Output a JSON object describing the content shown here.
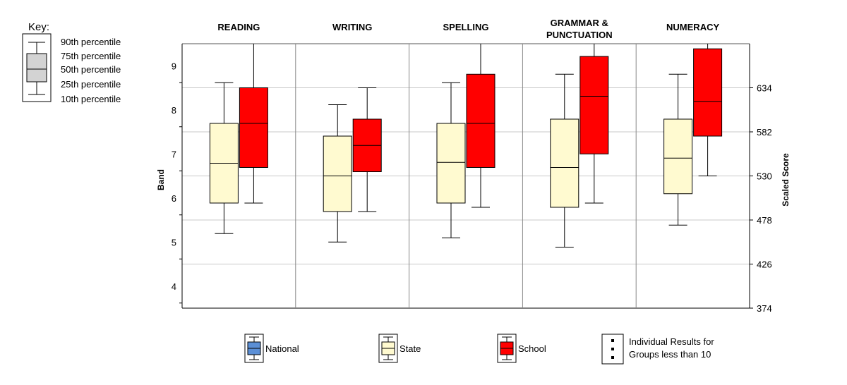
{
  "key": {
    "title": "Key:",
    "items": [
      "90th percentile",
      "75th percentile",
      "50th percentile",
      "25th percentile",
      "10th percentile"
    ]
  },
  "legend": {
    "items": [
      {
        "label": "National",
        "color": "#5b8fd6"
      },
      {
        "label": "State",
        "color": "#fffad0"
      },
      {
        "label": "School",
        "color": "#ff0000"
      },
      {
        "label_lines": [
          "Individual Results for",
          "Groups less than 10"
        ]
      }
    ]
  },
  "chart_data": {
    "type": "box",
    "ylabel": "Band",
    "ylabel_right": "Scaled Score",
    "band_ticks": [
      {
        "label": "4",
        "value": 400
      },
      {
        "label": "5",
        "value": 452
      },
      {
        "label": "6",
        "value": 504
      },
      {
        "label": "7",
        "value": 556
      },
      {
        "label": "8",
        "value": 608
      },
      {
        "label": "9",
        "value": 660
      }
    ],
    "score_ticks": [
      374,
      426,
      478,
      530,
      582,
      634
    ],
    "ylim": [
      374,
      686
    ],
    "grid": true,
    "colors": {
      "State": "#fffad0",
      "School": "#ff0000"
    },
    "categories": [
      {
        "name": "READING",
        "title_lines": [
          "READING"
        ],
        "State": {
          "p10": 462,
          "p25": 498,
          "p50": 545,
          "p75": 592,
          "p90": 640
        },
        "School": {
          "p10": 498,
          "p25": 540,
          "p50": 592,
          "p75": 634,
          "p90": 686
        }
      },
      {
        "name": "WRITING",
        "title_lines": [
          "WRITING"
        ],
        "State": {
          "p10": 452,
          "p25": 488,
          "p50": 530,
          "p75": 577,
          "p90": 614
        },
        "School": {
          "p10": 488,
          "p25": 535,
          "p50": 566,
          "p75": 597,
          "p90": 634
        }
      },
      {
        "name": "SPELLING",
        "title_lines": [
          "SPELLING"
        ],
        "State": {
          "p10": 457,
          "p25": 498,
          "p50": 546,
          "p75": 592,
          "p90": 640
        },
        "School": {
          "p10": 493,
          "p25": 540,
          "p50": 592,
          "p75": 650,
          "p90": 686
        }
      },
      {
        "name": "GRAMMAR & PUNCTUATION",
        "title_lines": [
          "GRAMMAR &",
          "PUNCTUATION"
        ],
        "State": {
          "p10": 446,
          "p25": 493,
          "p50": 540,
          "p75": 597,
          "p90": 650
        },
        "School": {
          "p10": 498,
          "p25": 556,
          "p50": 624,
          "p75": 671,
          "p90": 686
        }
      },
      {
        "name": "NUMERACY",
        "title_lines": [
          "NUMERACY"
        ],
        "State": {
          "p10": 472,
          "p25": 509,
          "p50": 551,
          "p75": 597,
          "p90": 650
        },
        "School": {
          "p10": 530,
          "p25": 577,
          "p50": 618,
          "p75": 680,
          "p90": 686
        }
      }
    ]
  }
}
